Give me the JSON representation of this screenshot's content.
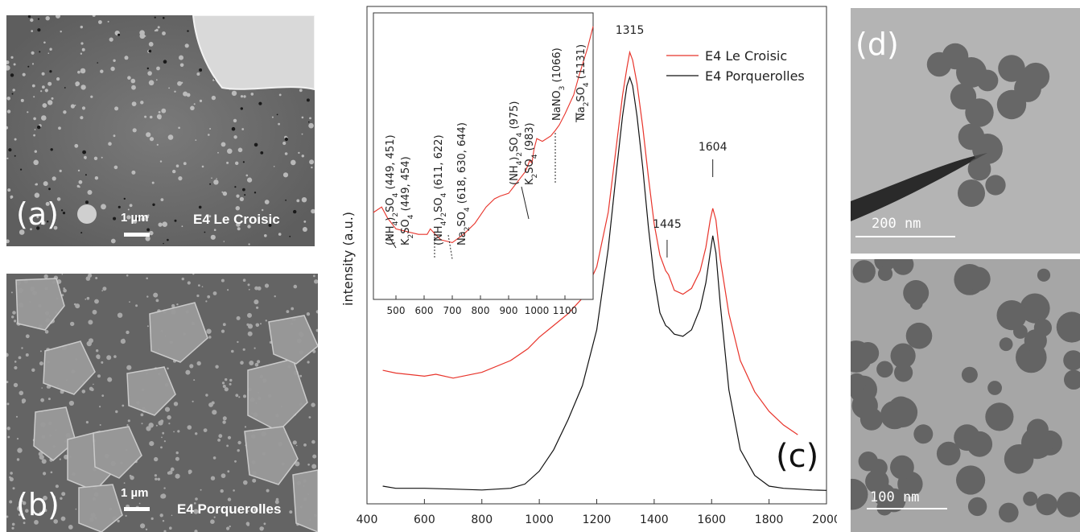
{
  "panels": {
    "a": {
      "letter": "(a)",
      "scale": "1 µm",
      "sample": "E4 Le Croisic"
    },
    "b": {
      "letter": "(b)",
      "scale": "1 µm",
      "sample": "E4 Porquerolles"
    },
    "c": {
      "letter": "(c)"
    },
    "d": {
      "letter": "(d)",
      "scale_top": "200 nm",
      "scale_bottom": "100 nm"
    }
  },
  "chart_data": {
    "type": "line",
    "ylabel": "intensity (a.u.)",
    "xlabel": "",
    "xlim": [
      400,
      2000
    ],
    "x_ticks": [
      400,
      600,
      800,
      1000,
      1200,
      1400,
      1600,
      1800,
      2000
    ],
    "legend_position": "top-right",
    "series": [
      {
        "name": "E4 Le Croisic",
        "color": "#e8342b",
        "x": [
          455,
          500,
          600,
          640,
          700,
          800,
          900,
          960,
          1000,
          1050,
          1100,
          1150,
          1200,
          1240,
          1270,
          1290,
          1305,
          1315,
          1325,
          1340,
          1360,
          1380,
          1400,
          1420,
          1440,
          1450,
          1470,
          1500,
          1530,
          1560,
          1580,
          1595,
          1604,
          1615,
          1630,
          1660,
          1700,
          1750,
          1800,
          1850,
          1900
        ],
        "y": [
          0.175,
          0.168,
          0.16,
          0.165,
          0.155,
          0.17,
          0.2,
          0.23,
          0.26,
          0.29,
          0.32,
          0.36,
          0.44,
          0.58,
          0.76,
          0.88,
          0.95,
          0.99,
          0.97,
          0.91,
          0.8,
          0.67,
          0.55,
          0.47,
          0.43,
          0.42,
          0.38,
          0.37,
          0.385,
          0.43,
          0.49,
          0.56,
          0.59,
          0.56,
          0.46,
          0.32,
          0.2,
          0.12,
          0.07,
          0.035,
          0.01
        ]
      },
      {
        "name": "E4 Porquerolles",
        "color": "#111111",
        "x": [
          455,
          500,
          600,
          700,
          800,
          900,
          950,
          1000,
          1050,
          1100,
          1150,
          1200,
          1240,
          1270,
          1290,
          1305,
          1315,
          1325,
          1340,
          1360,
          1380,
          1400,
          1420,
          1440,
          1450,
          1470,
          1500,
          1530,
          1560,
          1580,
          1595,
          1604,
          1615,
          1630,
          1660,
          1700,
          1750,
          1800,
          1850,
          1900,
          1950,
          2000
        ],
        "y": [
          0.015,
          0.01,
          0.01,
          0.008,
          0.006,
          0.01,
          0.02,
          0.05,
          0.1,
          0.17,
          0.25,
          0.38,
          0.57,
          0.76,
          0.88,
          0.95,
          0.97,
          0.95,
          0.88,
          0.76,
          0.62,
          0.5,
          0.42,
          0.39,
          0.385,
          0.37,
          0.365,
          0.38,
          0.43,
          0.49,
          0.56,
          0.6,
          0.56,
          0.44,
          0.24,
          0.1,
          0.04,
          0.015,
          0.01,
          0.008,
          0.006,
          0.005
        ]
      }
    ],
    "peak_labels": [
      {
        "x": 1315,
        "text": "1315"
      },
      {
        "x": 1445,
        "text": "1445"
      },
      {
        "x": 1604,
        "text": "1604"
      }
    ],
    "inset": {
      "xlim": [
        420,
        1200
      ],
      "x_ticks": [
        500,
        600,
        700,
        800,
        900,
        1000,
        1100
      ],
      "curve": {
        "color": "#e8342b",
        "x": [
          420,
          449,
          470,
          500,
          540,
          580,
          611,
          622,
          640,
          660,
          700,
          740,
          780,
          820,
          850,
          870,
          900,
          930,
          960,
          975,
          983,
          990,
          1000,
          1020,
          1050,
          1066,
          1080,
          1100,
          1131,
          1150,
          1180,
          1200
        ],
        "y": [
          0.3,
          0.32,
          0.28,
          0.24,
          0.23,
          0.22,
          0.22,
          0.24,
          0.22,
          0.2,
          0.19,
          0.22,
          0.26,
          0.32,
          0.35,
          0.36,
          0.37,
          0.41,
          0.45,
          0.49,
          0.48,
          0.53,
          0.57,
          0.56,
          0.58,
          0.6,
          0.62,
          0.66,
          0.73,
          0.8,
          0.9,
          0.98
        ]
      },
      "annotations": [
        {
          "x": 449,
          "lines": [
            "(NH4)2SO4 (449, 451)",
            "K2SO4 (449, 454)"
          ]
        },
        {
          "x": 611,
          "lines": [
            "(NH4)2SO4 (611, 622)"
          ]
        },
        {
          "x": 618,
          "lines": [
            "Na2SO4 (618, 630, 644)"
          ]
        },
        {
          "x": 975,
          "lines": [
            "(NH4)2SO4 (975)",
            "K2SO4 (983)"
          ]
        },
        {
          "x": 1066,
          "lines": [
            "NaNO3 (1066)"
          ]
        },
        {
          "x": 1131,
          "lines": [
            "Na2SO4 (1131)"
          ]
        }
      ]
    }
  }
}
